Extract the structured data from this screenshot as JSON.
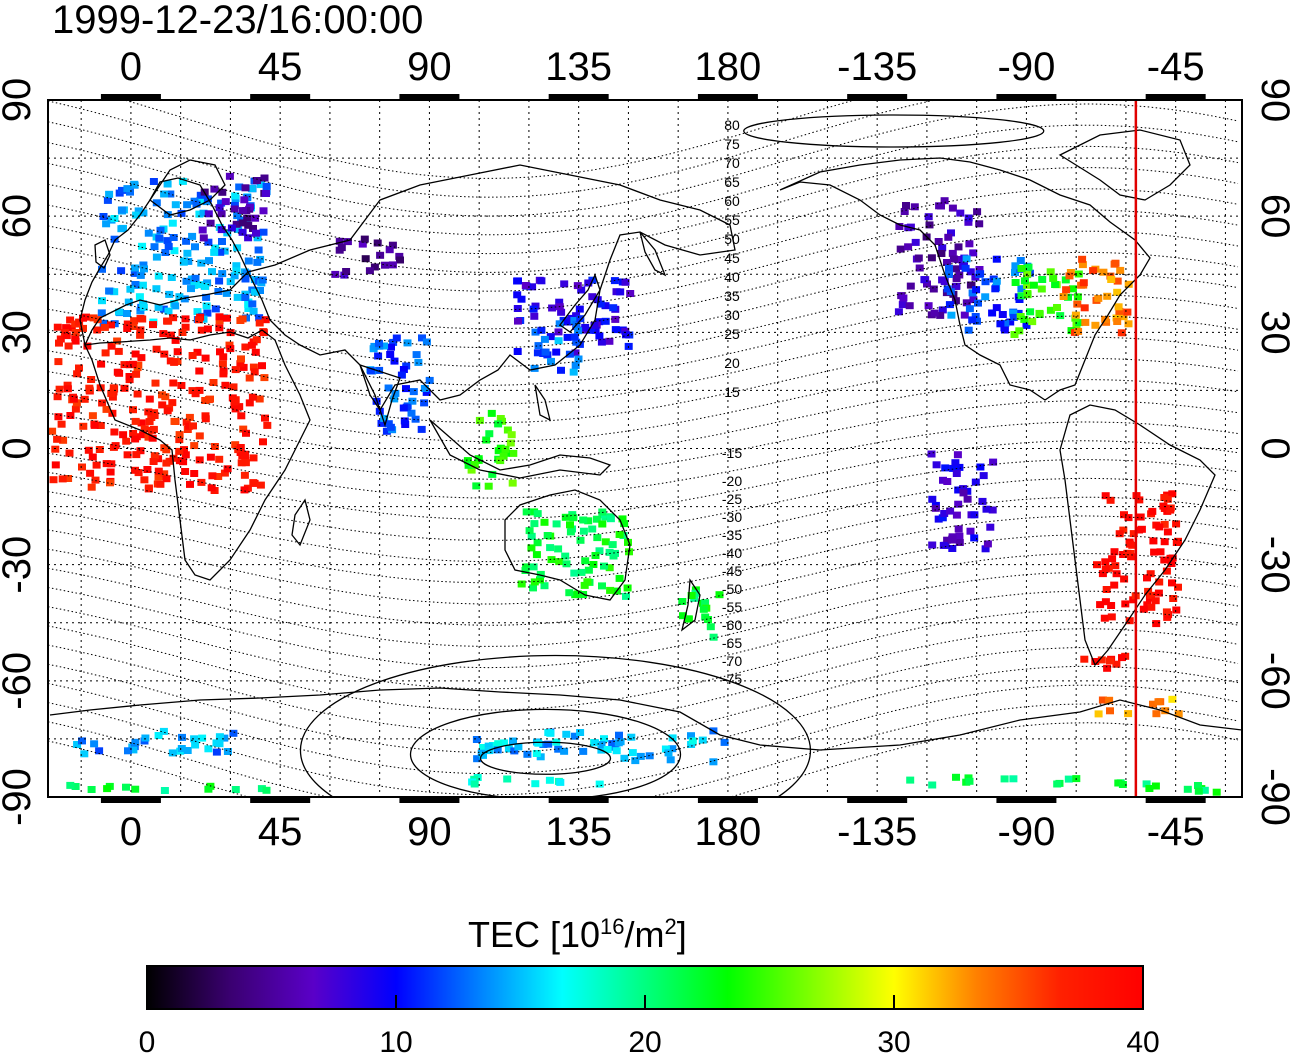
{
  "timestamp": "1999-12-23/16:00:00",
  "map": {
    "lon_ticks_top": [
      "0",
      "45",
      "90",
      "135",
      "180",
      "-135",
      "-90",
      "-45"
    ],
    "lon_ticks_bottom": [
      "0",
      "45",
      "90",
      "135",
      "180",
      "-135",
      "-90",
      "-45"
    ],
    "lat_ticks_left": [
      "90",
      "60",
      "30",
      "0",
      "-30",
      "-60",
      "-90"
    ],
    "lat_ticks_right": [
      "90",
      "60",
      "30",
      "0",
      "-30",
      "-60",
      "-90"
    ],
    "lon_range": [
      -25,
      335
    ],
    "lat_range": [
      -90,
      90
    ],
    "gridlines": "dotted every 15 degrees",
    "marker_longitude": -57,
    "marker_color": "#e00000",
    "contour_labels_north": [
      "80",
      "75",
      "70",
      "65",
      "60",
      "55",
      "50",
      "45",
      "40",
      "35",
      "30",
      "25",
      "20",
      "15"
    ],
    "contour_labels_south": [
      "-15",
      "-20",
      "-25",
      "-30",
      "-35",
      "-40",
      "-45",
      "-50",
      "-55",
      "-60",
      "-65",
      "-70",
      "-75"
    ],
    "regions": [
      {
        "lon": [
          -10,
          40
        ],
        "lat": [
          33,
          70
        ],
        "tec": 14
      },
      {
        "lon": [
          20,
          40
        ],
        "lat": [
          55,
          72
        ],
        "tec": 6
      },
      {
        "lon": [
          60,
          80
        ],
        "lat": [
          45,
          55
        ],
        "tec": 5
      },
      {
        "lon": [
          115,
          150
        ],
        "lat": [
          25,
          45
        ],
        "tec": 9
      },
      {
        "lon": [
          120,
          135
        ],
        "lat": [
          20,
          35
        ],
        "tec": 13
      },
      {
        "lon": [
          -130,
          -105
        ],
        "lat": [
          35,
          65
        ],
        "tec": 6
      },
      {
        "lon": [
          -115,
          -90
        ],
        "lat": [
          30,
          50
        ],
        "tec": 12
      },
      {
        "lon": [
          -95,
          -75
        ],
        "lat": [
          30,
          48
        ],
        "tec": 24
      },
      {
        "lon": [
          -80,
          -60
        ],
        "lat": [
          30,
          50
        ],
        "tec": 34
      },
      {
        "lon": [
          -70,
          -45
        ],
        "lat": [
          -45,
          -10
        ],
        "tec": 39
      },
      {
        "lon": [
          -75,
          -60
        ],
        "lat": [
          -56,
          -50
        ],
        "tec": 39
      },
      {
        "lon": [
          -70,
          -45
        ],
        "lat": [
          -68,
          -63
        ],
        "tec": 33
      },
      {
        "lon": [
          115,
          150
        ],
        "lat": [
          -38,
          -15
        ],
        "tec": 22
      },
      {
        "lon": [
          165,
          178
        ],
        "lat": [
          -48,
          -35
        ],
        "tec": 22
      },
      {
        "lon": [
          -25,
          40
        ],
        "lat": [
          -88,
          -86
        ],
        "tec": 21
      },
      {
        "lon": [
          100,
          150
        ],
        "lat": [
          -86,
          -84
        ],
        "tec": 18
      },
      {
        "lon": [
          -130,
          -95
        ],
        "lat": [
          -86,
          -84
        ],
        "tec": 21
      },
      {
        "lon": [
          -90,
          -50
        ],
        "lat": [
          -86,
          -84
        ],
        "tec": 21
      },
      {
        "lon": [
          -55,
          -30
        ],
        "lat": [
          -88,
          -86
        ],
        "tec": 21
      },
      {
        "lon": [
          -20,
          30
        ],
        "lat": [
          -78,
          -72
        ],
        "tec": 14
      },
      {
        "lon": [
          100,
          180
        ],
        "lat": [
          -80,
          -72
        ],
        "tec": 15
      },
      {
        "lon": [
          -25,
          40
        ],
        "lat": [
          -10,
          35
        ],
        "tec": 38
      },
      {
        "lon": [
          70,
          90
        ],
        "lat": [
          5,
          30
        ],
        "tec": 12
      },
      {
        "lon": [
          100,
          115
        ],
        "lat": [
          -10,
          10
        ],
        "tec": 24
      },
      {
        "lon": [
          -120,
          -100
        ],
        "lat": [
          -25,
          0
        ],
        "tec": 8
      }
    ]
  },
  "colorbar": {
    "title_main": "TEC  [10",
    "title_sup": "16",
    "title_mid": "/m",
    "title_sup2": "2",
    "title_end": "]",
    "ticks": [
      "0",
      "10",
      "20",
      "30",
      "40"
    ],
    "min": 0,
    "max": 40,
    "palette": [
      "#000000",
      "#3a0070",
      "#5a00c8",
      "#0000ff",
      "#0080ff",
      "#00ffff",
      "#00ff80",
      "#00ff00",
      "#80ff00",
      "#ffff00",
      "#ff8000",
      "#ff2000",
      "#ff0000"
    ]
  }
}
